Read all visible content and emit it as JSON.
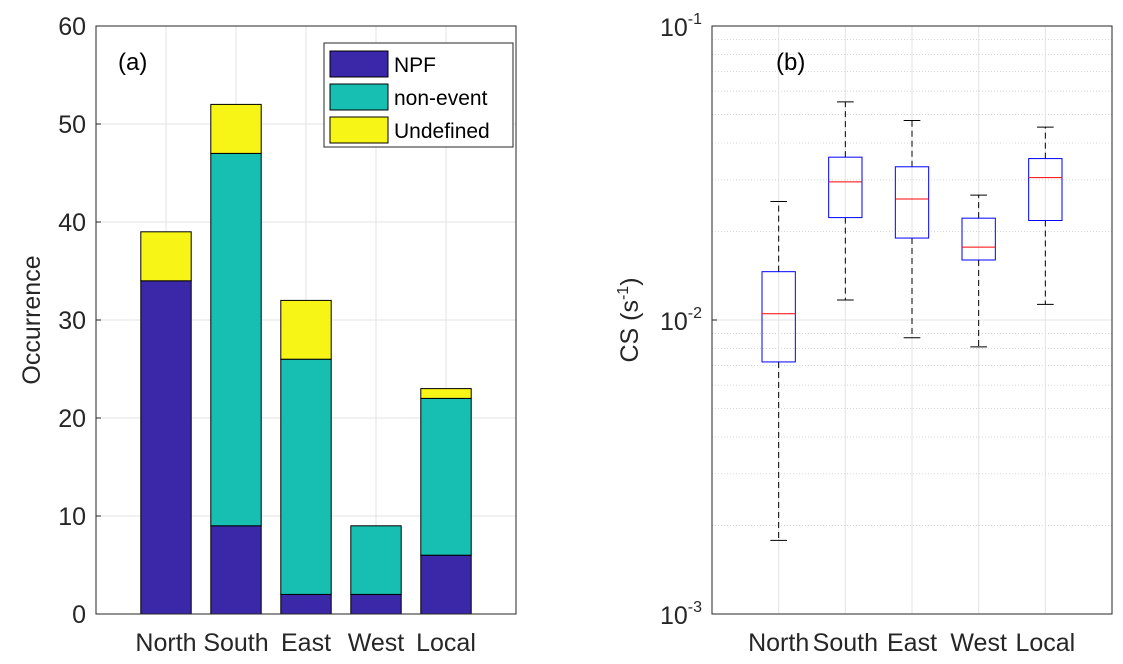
{
  "chart_data": [
    {
      "type": "bar",
      "stacked": true,
      "panel_label": "(a)",
      "ylabel": "Occurrence",
      "xlabel": "",
      "categories": [
        "North",
        "South",
        "East",
        "West",
        "Local"
      ],
      "ylim": [
        0,
        60
      ],
      "yticks": [
        "0",
        "10",
        "20",
        "30",
        "40",
        "50",
        "60"
      ],
      "grid": true,
      "legend_position": "top-right",
      "series": [
        {
          "name": "NPF",
          "color": "#3a28a8",
          "values": [
            34,
            9,
            2,
            2,
            6
          ]
        },
        {
          "name": "non-event",
          "color": "#17beb2",
          "values": [
            0,
            38,
            24,
            7,
            16
          ]
        },
        {
          "name": "Undefined",
          "color": "#f6f516",
          "values": [
            5,
            5,
            6,
            0,
            1
          ]
        }
      ]
    },
    {
      "type": "box",
      "panel_label": "(b)",
      "ylabel": "CS (s-1)",
      "ylabel_base": "CS (s",
      "ylabel_sup": "-1",
      "ylabel_end": ")",
      "xlabel": "",
      "yscale": "log",
      "ylim": [
        0.001,
        0.1
      ],
      "ytick_labels": [
        {
          "base": "10",
          "exp": "-3"
        },
        {
          "base": "10",
          "exp": "-2"
        },
        {
          "base": "10",
          "exp": "-1"
        }
      ],
      "grid": true,
      "box_color": "#0000ff",
      "median_color": "#ff0000",
      "categories": [
        "North",
        "South",
        "East",
        "West",
        "Local"
      ],
      "boxes": [
        {
          "whisker_low": 0.00178,
          "q1": 0.0072,
          "median": 0.0105,
          "q3": 0.0146,
          "whisker_high": 0.0253
        },
        {
          "whisker_low": 0.0117,
          "q1": 0.0223,
          "median": 0.0295,
          "q3": 0.0358,
          "whisker_high": 0.0552
        },
        {
          "whisker_low": 0.0087,
          "q1": 0.019,
          "median": 0.0258,
          "q3": 0.0332,
          "whisker_high": 0.0477
        },
        {
          "whisker_low": 0.0081,
          "q1": 0.016,
          "median": 0.0177,
          "q3": 0.0222,
          "whisker_high": 0.0266
        },
        {
          "whisker_low": 0.0113,
          "q1": 0.0218,
          "median": 0.0305,
          "q3": 0.0354,
          "whisker_high": 0.0453
        }
      ]
    }
  ]
}
